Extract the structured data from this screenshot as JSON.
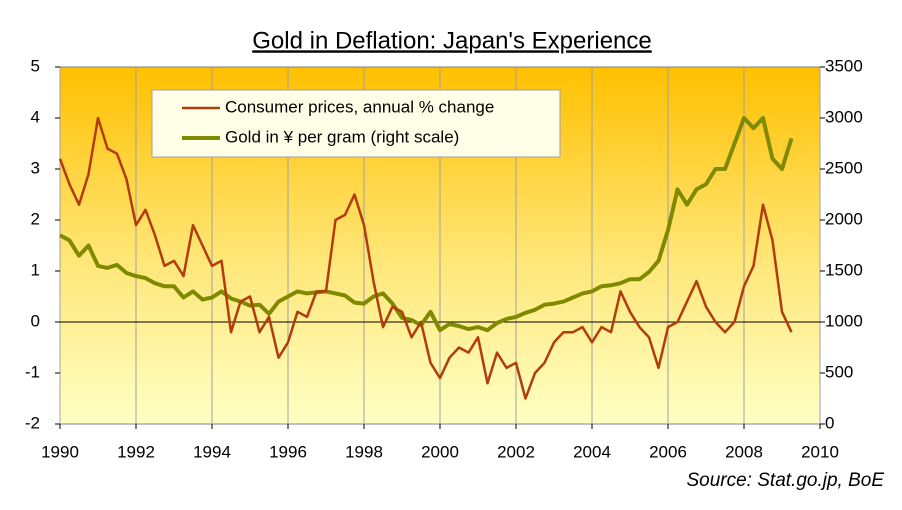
{
  "chart_data": {
    "type": "line",
    "title": "Gold in Deflation: Japan's Experience",
    "source": "Source: Stat.go.jp, BoE",
    "x": [
      1990,
      1990.25,
      1990.5,
      1990.75,
      1991,
      1991.25,
      1991.5,
      1991.75,
      1992,
      1992.25,
      1992.5,
      1992.75,
      1993,
      1993.25,
      1993.5,
      1993.75,
      1994,
      1994.25,
      1994.5,
      1994.75,
      1995,
      1995.25,
      1995.5,
      1995.75,
      1996,
      1996.25,
      1996.5,
      1996.75,
      1997,
      1997.25,
      1997.5,
      1997.75,
      1998,
      1998.25,
      1998.5,
      1998.75,
      1999,
      1999.25,
      1999.5,
      1999.75,
      2000,
      2000.25,
      2000.5,
      2000.75,
      2001,
      2001.25,
      2001.5,
      2001.75,
      2002,
      2002.25,
      2002.5,
      2002.75,
      2003,
      2003.25,
      2003.5,
      2003.75,
      2004,
      2004.25,
      2004.5,
      2004.75,
      2005,
      2005.25,
      2005.5,
      2005.75,
      2006,
      2006.25,
      2006.5,
      2006.75,
      2007,
      2007.25,
      2007.5,
      2007.75,
      2008,
      2008.25,
      2008.5,
      2008.75,
      2009,
      2009.25
    ],
    "series": [
      {
        "name": "Consumer prices, annual % change",
        "color": "#b23c0e",
        "axis": "y",
        "values": [
          3.2,
          2.7,
          2.3,
          2.9,
          4.0,
          3.4,
          3.3,
          2.8,
          1.9,
          2.2,
          1.7,
          1.1,
          1.2,
          0.9,
          1.9,
          1.5,
          1.1,
          1.2,
          -0.2,
          0.4,
          0.5,
          -0.2,
          0.1,
          -0.7,
          -0.4,
          0.2,
          0.1,
          0.6,
          0.6,
          2.0,
          2.1,
          2.5,
          1.9,
          0.8,
          -0.1,
          0.3,
          0.2,
          -0.3,
          0.0,
          -0.8,
          -1.1,
          -0.7,
          -0.5,
          -0.6,
          -0.3,
          -1.2,
          -0.6,
          -0.9,
          -0.8,
          -1.5,
          -1.0,
          -0.8,
          -0.4,
          -0.2,
          -0.2,
          -0.1,
          -0.4,
          -0.1,
          -0.2,
          0.6,
          0.2,
          -0.1,
          -0.3,
          -0.9,
          -0.1,
          0.0,
          0.4,
          0.8,
          0.3,
          0.0,
          -0.2,
          0.0,
          0.7,
          1.1,
          2.3,
          1.6,
          0.2,
          -0.2
        ]
      },
      {
        "name": "Gold in ¥ per gram (right scale)",
        "color": "#7f8a00",
        "axis": "y2",
        "values": [
          1850,
          1800,
          1650,
          1750,
          1550,
          1530,
          1560,
          1480,
          1450,
          1430,
          1380,
          1350,
          1350,
          1240,
          1300,
          1220,
          1240,
          1300,
          1230,
          1200,
          1160,
          1170,
          1080,
          1200,
          1250,
          1300,
          1280,
          1290,
          1300,
          1280,
          1260,
          1190,
          1180,
          1250,
          1280,
          1180,
          1040,
          1020,
          970,
          1100,
          920,
          980,
          960,
          930,
          950,
          920,
          990,
          1030,
          1050,
          1090,
          1120,
          1170,
          1180,
          1200,
          1240,
          1280,
          1300,
          1350,
          1360,
          1380,
          1420,
          1420,
          1490,
          1600,
          1900,
          2300,
          2150,
          2300,
          2350,
          2500,
          2500,
          2750,
          3000,
          2900,
          3000,
          2600,
          2500,
          2800
        ]
      }
    ],
    "xlim": [
      1990,
      2010
    ],
    "xticks": [
      1990,
      1992,
      1994,
      1996,
      1998,
      2000,
      2002,
      2004,
      2006,
      2008,
      2010
    ],
    "ylim": [
      -2,
      5
    ],
    "yticks": [
      -2,
      -1,
      0,
      1,
      2,
      3,
      4,
      5
    ],
    "y2lim": [
      0,
      3500
    ],
    "y2ticks": [
      0,
      500,
      1000,
      1500,
      2000,
      2500,
      3000,
      3500
    ],
    "grid": "x",
    "legend": "upper left"
  }
}
